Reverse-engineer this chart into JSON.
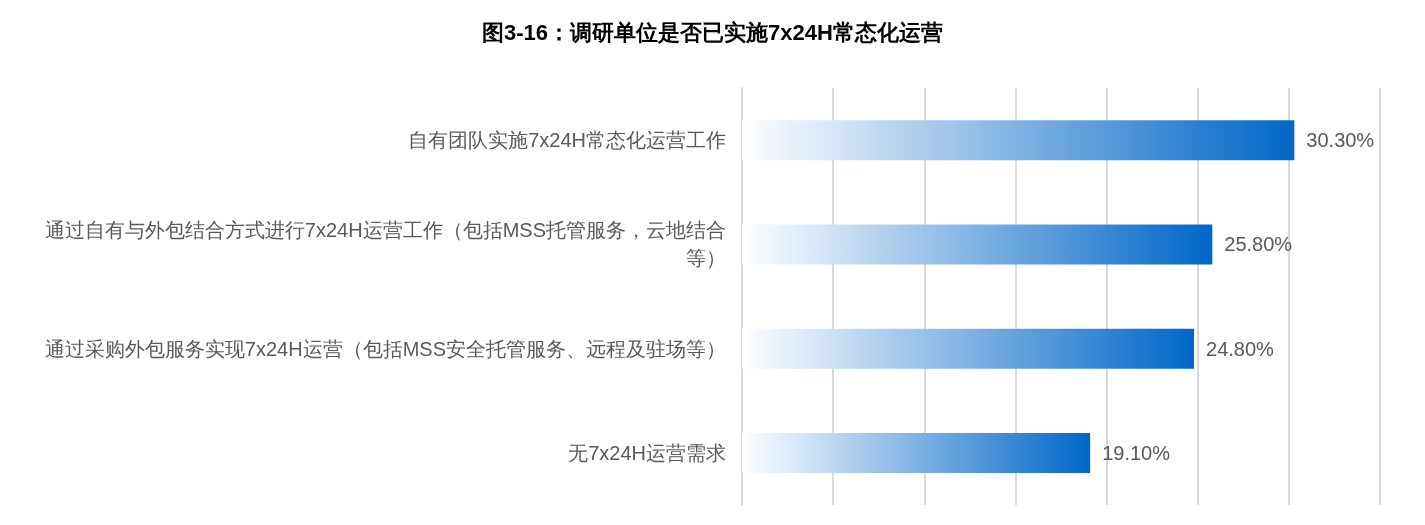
{
  "chart_data": {
    "type": "bar",
    "orientation": "horizontal",
    "title": "图3-16：调研单位是否已实施7x24H常态化运营",
    "categories": [
      "自有团队实施7x24H常态化运营工作",
      "通过自有与外包结合方式进行7x24H运营工作（包括MSS托管服务，云地结合等）",
      "通过采购外包服务实现7x24H运营（包括MSS安全托管服务、远程及驻场等）",
      "无7x24H运营需求"
    ],
    "values": [
      30.3,
      25.8,
      24.8,
      19.1
    ],
    "value_labels": [
      "30.30%",
      "25.80%",
      "24.80%",
      "19.10%"
    ],
    "color": "#0066c8",
    "xlim": [
      0,
      35
    ],
    "xticks": [
      {
        "value": 0,
        "label": null
      },
      {
        "value": 5,
        "label": null
      },
      {
        "value": 10,
        "label": null
      },
      {
        "value": 15,
        "label": null
      },
      {
        "value": 20,
        "label": null
      },
      {
        "value": 25,
        "label": null
      },
      {
        "value": 30,
        "label": null
      },
      {
        "value": 35,
        "label": null
      }
    ],
    "tick_labels": "y",
    "grid": "x"
  }
}
